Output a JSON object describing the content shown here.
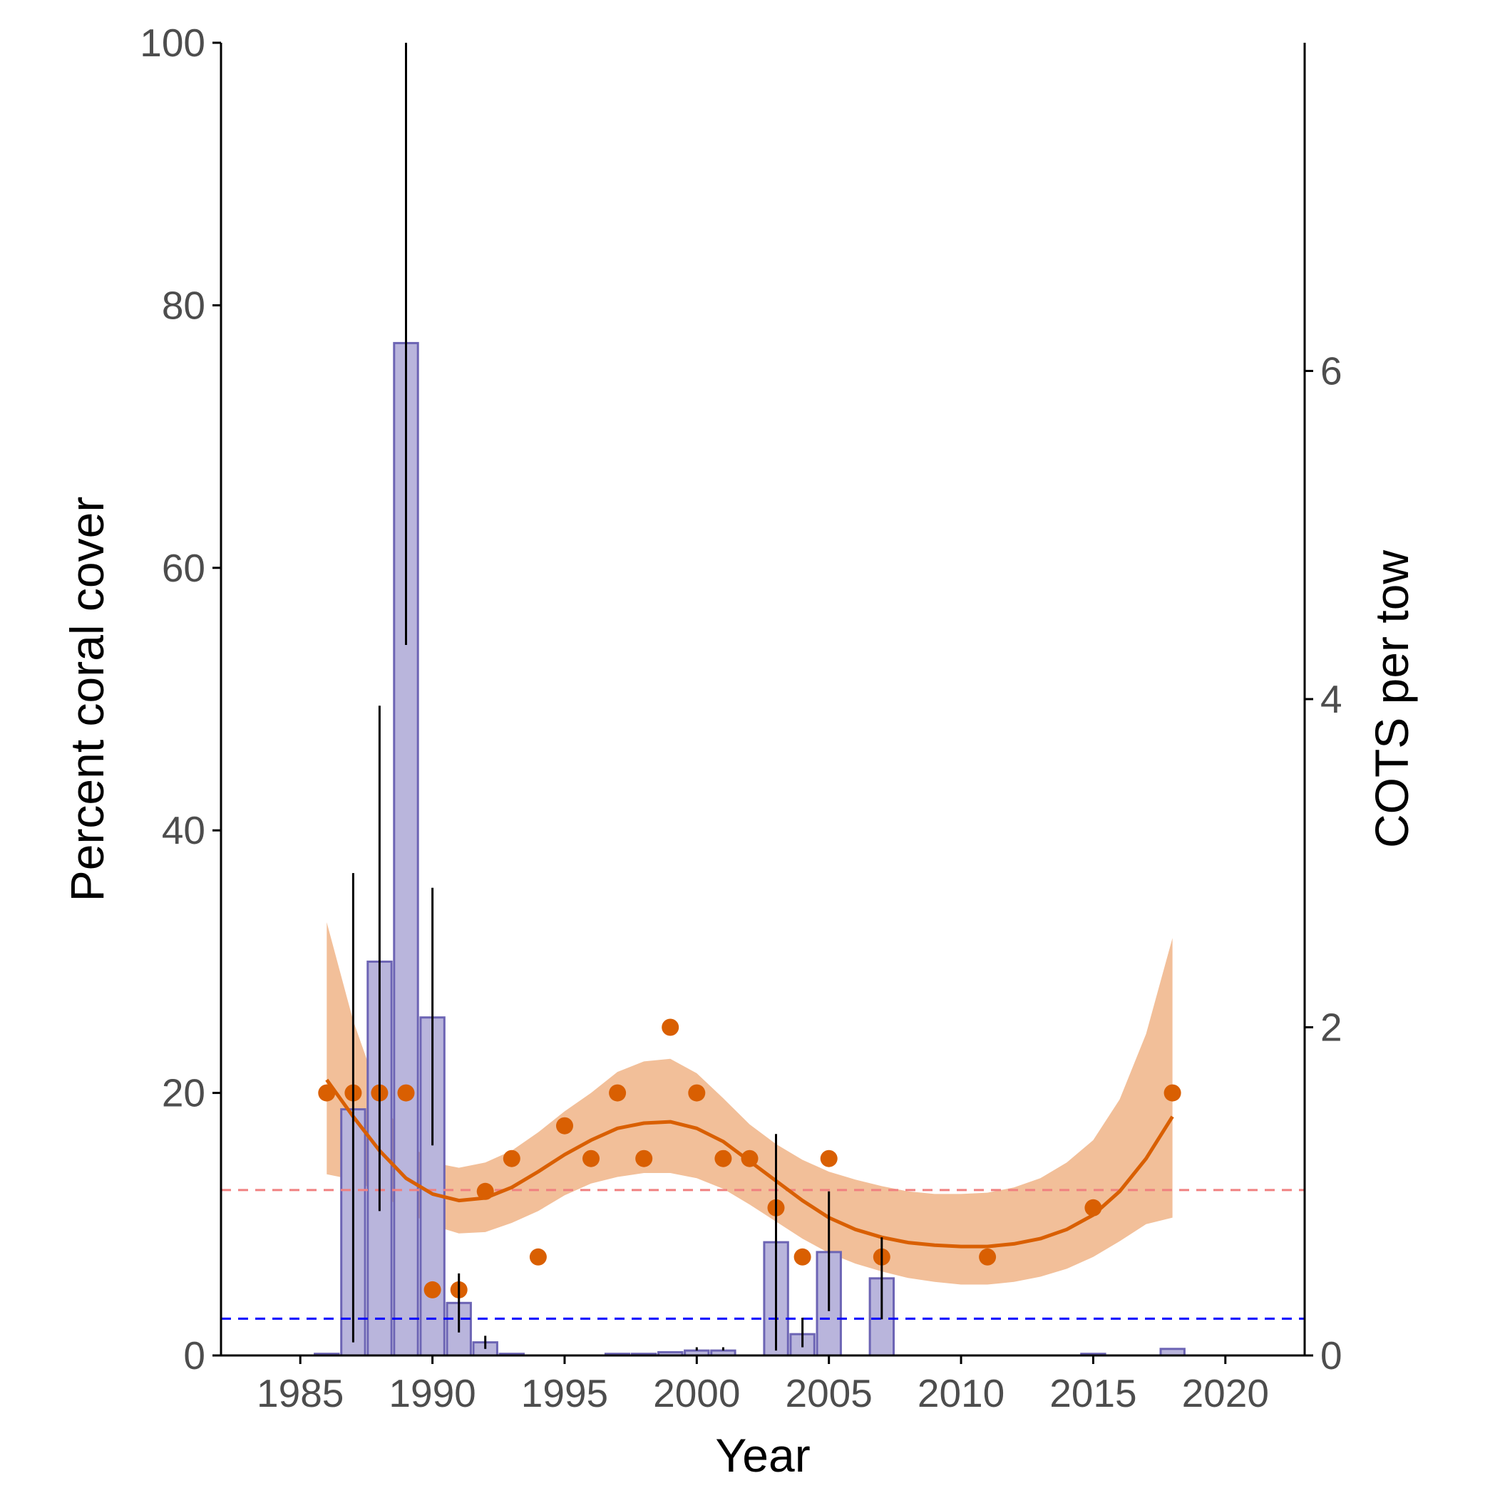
{
  "chart_data": {
    "type": "bar",
    "xlabel": "Year",
    "ylabel": "Percent coral cover",
    "y2label": "COTS per tow",
    "xlim": [
      1982,
      2023
    ],
    "ylim": [
      0,
      100
    ],
    "y2lim": [
      0,
      8
    ],
    "x_ticks": [
      "1985",
      "1990",
      "1995",
      "2000",
      "2005",
      "2010",
      "2015",
      "2020"
    ],
    "y_ticks": [
      "0",
      "20",
      "40",
      "60",
      "80",
      "100"
    ],
    "y2_ticks": [
      "0",
      "2",
      "4",
      "6"
    ],
    "colors": {
      "bar_fill": "#b9b5dc",
      "bar_stroke": "#6c64b4",
      "points": "#d95f02",
      "smooth_line": "#d95f02",
      "ribbon": "#f2bf99",
      "error_bars": "#000000",
      "ref_line_red": "#f08080",
      "ref_line_blue": "#0000ff"
    },
    "grid": false,
    "legend": "none",
    "reference_lines": [
      {
        "axis": "y",
        "value": 12.6,
        "color": "#f08080",
        "style": "dashed"
      },
      {
        "axis": "y",
        "value": 2.8,
        "color": "#0000ff",
        "style": "dashed"
      }
    ],
    "cots_bars": {
      "axis": "y2",
      "x": [
        1986,
        1987,
        1988,
        1989,
        1990,
        1991,
        1992,
        1993,
        1997,
        1998,
        1999,
        2000,
        2001,
        2003,
        2004,
        2005,
        2007,
        2015,
        2018
      ],
      "values": [
        0.01,
        1.5,
        2.4,
        6.17,
        2.06,
        0.32,
        0.08,
        0.01,
        0.01,
        0.01,
        0.02,
        0.03,
        0.03,
        0.69,
        0.13,
        0.63,
        0.47,
        0.01,
        0.04
      ],
      "error_low": [
        null,
        0.08,
        0.88,
        4.33,
        1.28,
        0.14,
        0.04,
        null,
        null,
        null,
        null,
        null,
        null,
        0.03,
        0.05,
        0.27,
        0.22,
        null,
        null
      ],
      "error_high": [
        null,
        2.94,
        3.96,
        8.0,
        2.85,
        0.5,
        0.12,
        null,
        null,
        null,
        null,
        0.05,
        0.05,
        1.35,
        0.23,
        1.0,
        0.72,
        null,
        null
      ]
    },
    "coral_points": {
      "axis": "y",
      "x": [
        1986,
        1987,
        1988,
        1989,
        1990,
        1991,
        1992,
        1993,
        1994,
        1995,
        1996,
        1997,
        1998,
        1999,
        2000,
        2001,
        2002,
        2003,
        2004,
        2005,
        2007,
        2011,
        2015,
        2018
      ],
      "values": [
        20,
        20,
        20,
        20,
        5,
        5,
        12.5,
        15,
        7.5,
        17.5,
        15,
        20,
        15,
        25,
        20,
        15,
        15,
        11.25,
        7.5,
        15,
        7.5,
        7.5,
        11.25,
        20
      ]
    },
    "coral_smooth": {
      "axis": "y",
      "x": [
        1986,
        1987,
        1988,
        1989,
        1990,
        1991,
        1992,
        1993,
        1994,
        1995,
        1996,
        1997,
        1998,
        1999,
        2000,
        2001,
        2002,
        2003,
        2004,
        2005,
        2006,
        2007,
        2008,
        2009,
        2010,
        2011,
        2012,
        2013,
        2014,
        2015,
        2016,
        2017,
        2018
      ],
      "fit": [
        21.0,
        18.2,
        15.6,
        13.5,
        12.3,
        11.8,
        12.0,
        12.8,
        14.0,
        15.3,
        16.4,
        17.3,
        17.7,
        17.8,
        17.3,
        16.3,
        14.8,
        13.3,
        11.8,
        10.5,
        9.6,
        9.0,
        8.6,
        8.4,
        8.3,
        8.3,
        8.5,
        8.9,
        9.6,
        10.7,
        12.5,
        15.0,
        18.2
      ],
      "lower": [
        13.8,
        13.4,
        12.4,
        11.0,
        9.9,
        9.3,
        9.4,
        10.1,
        11.0,
        12.2,
        13.1,
        13.6,
        13.9,
        13.9,
        13.5,
        12.7,
        11.5,
        10.2,
        8.9,
        7.8,
        7.0,
        6.4,
        5.9,
        5.6,
        5.4,
        5.4,
        5.6,
        6.0,
        6.6,
        7.5,
        8.7,
        10.0,
        10.5
      ],
      "upper": [
        33.0,
        25.5,
        19.8,
        16.3,
        14.7,
        14.3,
        14.7,
        15.6,
        17.0,
        18.6,
        20.0,
        21.6,
        22.4,
        22.6,
        21.5,
        19.6,
        17.6,
        16.1,
        14.9,
        14.0,
        13.4,
        12.9,
        12.5,
        12.3,
        12.3,
        12.4,
        12.8,
        13.5,
        14.7,
        16.4,
        19.5,
        24.5,
        31.8
      ]
    }
  }
}
